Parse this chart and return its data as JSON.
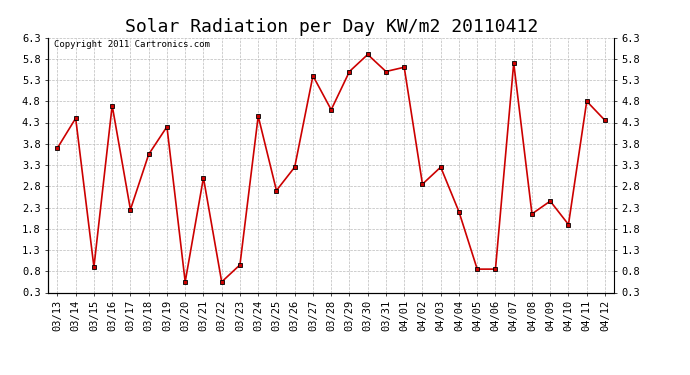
{
  "title": "Solar Radiation per Day KW/m2 20110412",
  "copyright": "Copyright 2011 Cartronics.com",
  "dates": [
    "03/13",
    "03/14",
    "03/15",
    "03/16",
    "03/17",
    "03/18",
    "03/19",
    "03/20",
    "03/21",
    "03/22",
    "03/23",
    "03/24",
    "03/25",
    "03/26",
    "03/27",
    "03/28",
    "03/29",
    "03/30",
    "03/31",
    "04/01",
    "04/02",
    "04/03",
    "04/04",
    "04/05",
    "04/06",
    "04/07",
    "04/08",
    "04/09",
    "04/10",
    "04/11",
    "04/12"
  ],
  "values": [
    3.7,
    4.4,
    0.9,
    4.7,
    2.25,
    3.55,
    4.2,
    0.55,
    3.0,
    0.55,
    0.95,
    4.45,
    2.7,
    3.25,
    5.4,
    4.6,
    5.5,
    5.9,
    5.5,
    5.6,
    2.85,
    3.25,
    2.2,
    0.85,
    0.85,
    5.7,
    2.15,
    2.45,
    1.9,
    4.8,
    4.35
  ],
  "line_color": "#cc0000",
  "marker": "s",
  "marker_color": "#cc0000",
  "marker_size": 3,
  "bg_color": "#ffffff",
  "grid_color": "#bbbbbb",
  "ylim": [
    0.3,
    6.3
  ],
  "yticks": [
    0.3,
    0.8,
    1.3,
    1.8,
    2.3,
    2.8,
    3.3,
    3.8,
    4.3,
    4.8,
    5.3,
    5.8,
    6.3
  ],
  "title_fontsize": 13,
  "tick_fontsize": 7.5,
  "copyright_fontsize": 6.5
}
